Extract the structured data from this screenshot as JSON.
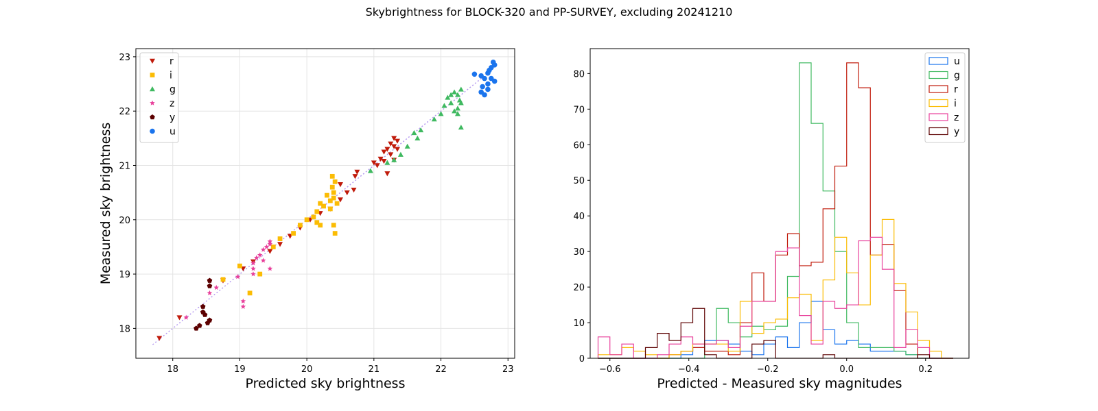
{
  "suptitle": "Skybrightness for BLOCK-320 and PP-SURVEY, excluding 20241210",
  "chart_data": [
    {
      "type": "scatter",
      "xlabel": "Predicted sky brightness",
      "ylabel": "Measured sky brightness",
      "xlim": [
        17.45,
        23.1
      ],
      "ylim": [
        17.45,
        23.15
      ],
      "xticks": [
        "18",
        "19",
        "20",
        "21",
        "22",
        "23"
      ],
      "yticks": [
        "18",
        "19",
        "20",
        "21",
        "22",
        "23"
      ],
      "grid": true,
      "legend_position": "top-left",
      "reference_line": {
        "style": "dotted",
        "color": "#b59af0",
        "x": [
          17.7,
          22.7
        ],
        "y": [
          17.7,
          22.7
        ]
      },
      "series": [
        {
          "name": "r",
          "marker": "triangle-down",
          "color": "#c01a0a",
          "points": [
            [
              17.8,
              17.82
            ],
            [
              18.1,
              18.2
            ],
            [
              18.75,
              18.88
            ],
            [
              19.05,
              19.1
            ],
            [
              19.2,
              19.23
            ],
            [
              19.45,
              19.42
            ],
            [
              19.6,
              19.55
            ],
            [
              19.75,
              19.7
            ],
            [
              19.9,
              19.85
            ],
            [
              20.05,
              20.0
            ],
            [
              20.2,
              20.12
            ],
            [
              20.35,
              20.2
            ],
            [
              20.5,
              20.37
            ],
            [
              20.6,
              20.5
            ],
            [
              20.7,
              20.55
            ],
            [
              20.5,
              20.65
            ],
            [
              20.72,
              20.8
            ],
            [
              20.75,
              20.88
            ],
            [
              21.0,
              21.05
            ],
            [
              21.05,
              21.0
            ],
            [
              21.1,
              21.12
            ],
            [
              21.15,
              21.08
            ],
            [
              21.2,
              20.85
            ],
            [
              21.2,
              21.3
            ],
            [
              21.25,
              21.4
            ],
            [
              21.3,
              21.5
            ],
            [
              21.35,
              21.45
            ],
            [
              21.3,
              21.1
            ],
            [
              21.15,
              21.25
            ],
            [
              21.25,
              21.2
            ],
            [
              21.3,
              21.35
            ],
            [
              21.35,
              21.3
            ]
          ]
        },
        {
          "name": "i",
          "marker": "square",
          "color": "#fbbc04",
          "points": [
            [
              18.75,
              18.9
            ],
            [
              19.0,
              19.15
            ],
            [
              19.15,
              18.65
            ],
            [
              19.3,
              19.0
            ],
            [
              19.5,
              19.5
            ],
            [
              19.6,
              19.65
            ],
            [
              19.8,
              19.75
            ],
            [
              19.9,
              19.9
            ],
            [
              20.0,
              20.0
            ],
            [
              20.1,
              20.05
            ],
            [
              20.15,
              20.15
            ],
            [
              20.2,
              20.3
            ],
            [
              20.25,
              20.25
            ],
            [
              20.3,
              20.45
            ],
            [
              20.35,
              20.35
            ],
            [
              20.38,
              20.6
            ],
            [
              20.4,
              20.5
            ],
            [
              20.42,
              20.7
            ],
            [
              20.38,
              20.8
            ],
            [
              20.4,
              19.9
            ],
            [
              20.42,
              19.75
            ],
            [
              20.15,
              19.95
            ],
            [
              20.2,
              19.9
            ],
            [
              20.35,
              20.2
            ],
            [
              20.45,
              20.3
            ],
            [
              20.4,
              20.4
            ]
          ]
        },
        {
          "name": "g",
          "marker": "triangle-up",
          "color": "#3fb960",
          "points": [
            [
              20.95,
              20.9
            ],
            [
              21.2,
              21.05
            ],
            [
              21.3,
              21.1
            ],
            [
              21.4,
              21.2
            ],
            [
              21.5,
              21.35
            ],
            [
              21.6,
              21.6
            ],
            [
              21.7,
              21.65
            ],
            [
              21.65,
              21.5
            ],
            [
              21.9,
              21.85
            ],
            [
              22.0,
              21.95
            ],
            [
              22.05,
              22.1
            ],
            [
              22.1,
              22.25
            ],
            [
              22.15,
              22.3
            ],
            [
              22.2,
              22.35
            ],
            [
              22.25,
              22.05
            ],
            [
              22.3,
              22.4
            ],
            [
              22.2,
              22.0
            ],
            [
              22.25,
              21.95
            ],
            [
              22.3,
              22.15
            ],
            [
              22.28,
              22.2
            ],
            [
              22.15,
              22.15
            ],
            [
              22.3,
              21.7
            ],
            [
              22.25,
              22.3
            ]
          ]
        },
        {
          "name": "z",
          "marker": "star",
          "color": "#e8409b",
          "points": [
            [
              18.2,
              18.2
            ],
            [
              18.55,
              18.65
            ],
            [
              18.65,
              18.75
            ],
            [
              18.97,
              18.95
            ],
            [
              19.05,
              18.4
            ],
            [
              19.05,
              18.5
            ],
            [
              19.2,
              19.2
            ],
            [
              19.2,
              19.0
            ],
            [
              19.25,
              19.3
            ],
            [
              19.3,
              19.35
            ],
            [
              19.35,
              19.45
            ],
            [
              19.4,
              19.5
            ],
            [
              19.45,
              19.55
            ],
            [
              19.45,
              19.1
            ],
            [
              19.45,
              19.6
            ],
            [
              19.35,
              19.25
            ],
            [
              19.2,
              19.1
            ]
          ]
        },
        {
          "name": "y",
          "marker": "pentagon",
          "color": "#5c0000",
          "points": [
            [
              18.35,
              18.0
            ],
            [
              18.4,
              18.05
            ],
            [
              18.45,
              18.3
            ],
            [
              18.48,
              18.25
            ],
            [
              18.52,
              18.1
            ],
            [
              18.55,
              18.15
            ],
            [
              18.55,
              18.78
            ],
            [
              18.55,
              18.88
            ],
            [
              18.45,
              18.4
            ]
          ]
        },
        {
          "name": "u",
          "marker": "circle",
          "color": "#1a74ed",
          "points": [
            [
              22.5,
              22.68
            ],
            [
              22.6,
              22.65
            ],
            [
              22.65,
              22.6
            ],
            [
              22.7,
              22.7
            ],
            [
              22.72,
              22.75
            ],
            [
              22.75,
              22.8
            ],
            [
              22.78,
              22.9
            ],
            [
              22.8,
              22.85
            ],
            [
              22.75,
              22.6
            ],
            [
              22.8,
              22.55
            ],
            [
              22.6,
              22.35
            ],
            [
              22.65,
              22.3
            ],
            [
              22.7,
              22.4
            ],
            [
              22.62,
              22.45
            ],
            [
              22.7,
              22.5
            ]
          ]
        }
      ]
    },
    {
      "type": "histogram",
      "xlabel": "Predicted - Measured sky magnitudes",
      "ylabel": "",
      "xlim": [
        -0.65,
        0.31
      ],
      "ylim": [
        0,
        87
      ],
      "xticks": [
        "−0.6",
        "−0.4",
        "−0.2",
        "0.0",
        "0.2"
      ],
      "yticks": [
        "0",
        "10",
        "20",
        "30",
        "40",
        "50",
        "60",
        "70",
        "80"
      ],
      "grid": false,
      "legend_position": "top-right",
      "bin_start": -0.63,
      "bin_width": 0.03,
      "series": [
        {
          "name": "u",
          "color": "#1a74ed",
          "counts": [
            0,
            0,
            0,
            0,
            0,
            0,
            0,
            1,
            3,
            5,
            5,
            4,
            2,
            1,
            4,
            6,
            3,
            10,
            16,
            8,
            4,
            5,
            4,
            2,
            2,
            2,
            1,
            0,
            0,
            0
          ]
        },
        {
          "name": "g",
          "color": "#3fb960",
          "counts": [
            0,
            0,
            0,
            0,
            0,
            0,
            0,
            0,
            0,
            4,
            14,
            10,
            6,
            9,
            8,
            9,
            23,
            83,
            66,
            47,
            30,
            10,
            3,
            3,
            3,
            2,
            1,
            0,
            0,
            0
          ]
        },
        {
          "name": "r",
          "color": "#c01a0a",
          "counts": [
            0,
            0,
            0,
            0,
            0,
            0,
            1,
            2,
            3,
            2,
            2,
            1,
            10,
            24,
            16,
            29,
            35,
            26,
            27,
            42,
            54,
            83,
            76,
            29,
            32,
            19,
            4,
            0,
            0,
            0
          ]
        },
        {
          "name": "i",
          "color": "#fbbc04",
          "counts": [
            1,
            1,
            3,
            2,
            1,
            0,
            1,
            2,
            4,
            4,
            4,
            2,
            16,
            7,
            10,
            11,
            17,
            18,
            5,
            22,
            34,
            24,
            15,
            29,
            39,
            21,
            13,
            5,
            2,
            0
          ]
        },
        {
          "name": "z",
          "color": "#e8409b",
          "counts": [
            6,
            1,
            4,
            0,
            0,
            1,
            4,
            6,
            4,
            4,
            5,
            3,
            9,
            16,
            16,
            30,
            31,
            12,
            4,
            16,
            14,
            15,
            33,
            34,
            25,
            3,
            8,
            3,
            0,
            0
          ]
        },
        {
          "name": "y",
          "color": "#5c0000",
          "counts": [
            0,
            0,
            0,
            0,
            3,
            7,
            5,
            10,
            14,
            1,
            0,
            0,
            0,
            4,
            5,
            0,
            0,
            0,
            0,
            1,
            0,
            0,
            0,
            0,
            0,
            0,
            0,
            1,
            0,
            0
          ]
        }
      ]
    }
  ]
}
